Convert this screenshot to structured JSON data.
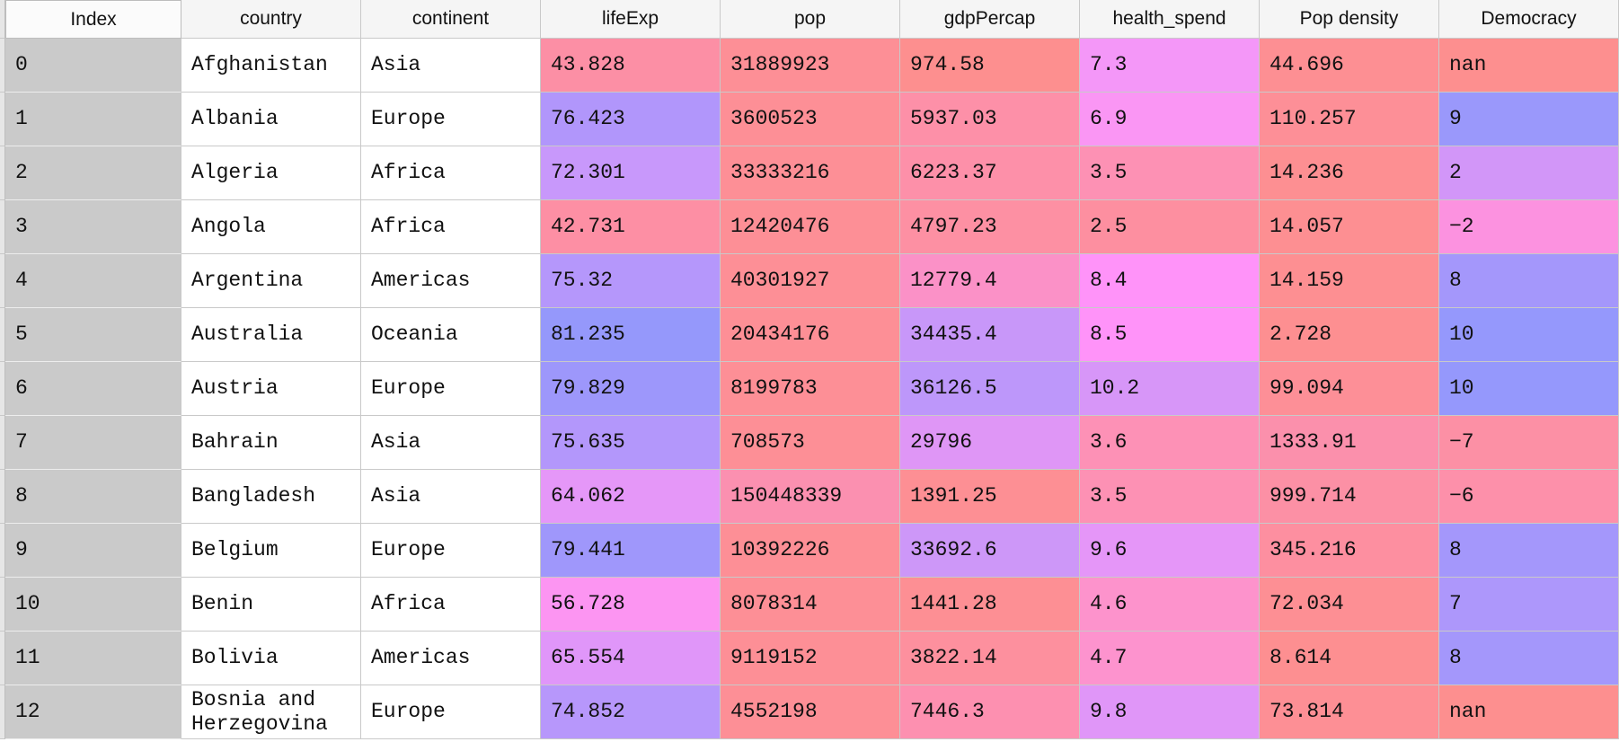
{
  "table": {
    "headers": [
      "Index",
      "country",
      "continent",
      "lifeExp",
      "pop",
      "gdpPercap",
      "health_spend",
      "Pop density",
      "Democracy"
    ],
    "rows": [
      [
        "0",
        "Afghanistan",
        "Asia",
        "43.828",
        "31889923",
        "974.58",
        "7.3",
        "44.696",
        "nan"
      ],
      [
        "1",
        "Albania",
        "Europe",
        "76.423",
        "3600523",
        "5937.03",
        "6.9",
        "110.257",
        "9"
      ],
      [
        "2",
        "Algeria",
        "Africa",
        "72.301",
        "33333216",
        "6223.37",
        "3.5",
        "14.236",
        "2"
      ],
      [
        "3",
        "Angola",
        "Africa",
        "42.731",
        "12420476",
        "4797.23",
        "2.5",
        "14.057",
        "−2"
      ],
      [
        "4",
        "Argentina",
        "Americas",
        "75.32",
        "40301927",
        "12779.4",
        "8.4",
        "14.159",
        "8"
      ],
      [
        "5",
        "Australia",
        "Oceania",
        "81.235",
        "20434176",
        "34435.4",
        "8.5",
        "2.728",
        "10"
      ],
      [
        "6",
        "Austria",
        "Europe",
        "79.829",
        "8199783",
        "36126.5",
        "10.2",
        "99.094",
        "10"
      ],
      [
        "7",
        "Bahrain",
        "Asia",
        "75.635",
        "708573",
        "29796",
        "3.6",
        "1333.91",
        "−7"
      ],
      [
        "8",
        "Bangladesh",
        "Asia",
        "64.062",
        "150448339",
        "1391.25",
        "3.5",
        "999.714",
        "−6"
      ],
      [
        "9",
        "Belgium",
        "Europe",
        "79.441",
        "10392226",
        "33692.6",
        "9.6",
        "345.216",
        "8"
      ],
      [
        "10",
        "Benin",
        "Africa",
        "56.728",
        "8078314",
        "1441.28",
        "4.6",
        "72.034",
        "7"
      ],
      [
        "11",
        "Bolivia",
        "Americas",
        "65.554",
        "9119152",
        "3822.14",
        "4.7",
        "8.614",
        "8"
      ],
      [
        "12",
        "Bosnia and Herzegovina",
        "Europe",
        "74.852",
        "4552198",
        "7446.3",
        "9.8",
        "73.814",
        "nan"
      ]
    ],
    "cell_colors": [
      [
        "#fc8fa5",
        "#fd8f96",
        "#fd8f8f",
        "#f497f8",
        "#fd8f93",
        "#fd8f8f"
      ],
      [
        "#b196fb",
        "#fd8f96",
        "#fd90a8",
        "#fa96f4",
        "#fd8f97",
        "#9a98fb"
      ],
      [
        "#c898fb",
        "#fd8f96",
        "#fd90a9",
        "#fd91b4",
        "#fd8f92",
        "#d296f8"
      ],
      [
        "#fd8fa4",
        "#fd8f96",
        "#fd90a3",
        "#fd8fa0",
        "#fd8f92",
        "#fc92e0"
      ],
      [
        "#b597fb",
        "#fd8f96",
        "#fb91c7",
        "#ff93f9",
        "#fd8f92",
        "#a497fb"
      ],
      [
        "#9598fb",
        "#fd8f96",
        "#c897f9",
        "#ff93f9",
        "#fd8f91",
        "#9598fc"
      ],
      [
        "#9d97fb",
        "#fd8f96",
        "#bd97fa",
        "#d796f8",
        "#fd8f97",
        "#9598fc"
      ],
      [
        "#b397fb",
        "#fd8f96",
        "#df96f6",
        "#fd91b6",
        "#fb90ac",
        "#fc90a5"
      ],
      [
        "#e597f8",
        "#fb90b0",
        "#fd8f94",
        "#fd91b4",
        "#fc90a5",
        "#fd90aa"
      ],
      [
        "#9f97fb",
        "#fd8f96",
        "#cd97f8",
        "#e596f8",
        "#fd8fa0",
        "#a497fb"
      ],
      [
        "#fc95f2",
        "#fd8f96",
        "#fd8f94",
        "#fd93cc",
        "#fd8f94",
        "#ad97fb"
      ],
      [
        "#e096f9",
        "#fd8f96",
        "#fd909e",
        "#fd93ce",
        "#fd8f91",
        "#a497fb"
      ],
      [
        "#b797fb",
        "#fd8f96",
        "#fd90b0",
        "#e096f8",
        "#fd8f95",
        "#fd8f8f"
      ]
    ]
  }
}
